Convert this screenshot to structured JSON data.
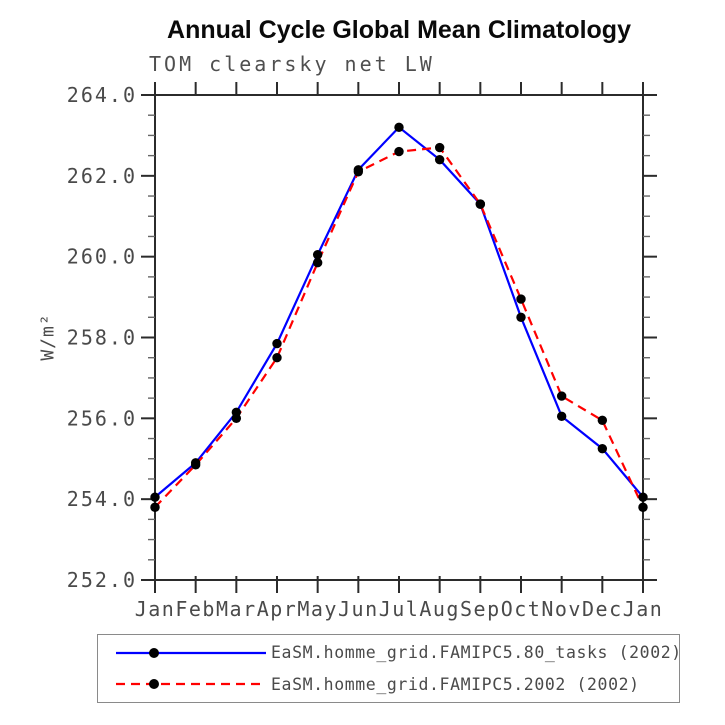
{
  "title": "Annual Cycle Global Mean Climatology",
  "subtitle": "TOM clearsky net LW",
  "ylabel": "W/m²",
  "legend": {
    "position": "bottom",
    "border_color": "#8a8a8a",
    "entries": [
      {
        "label": "EaSM.homme_grid.FAMIPC5.80_tasks (2002)",
        "line_color": "#0000ff",
        "line_style": "solid",
        "marker": "filled-circle",
        "marker_color": "#000000"
      },
      {
        "label": "EaSM.homme_grid.FAMIPC5.2002 (2002)",
        "line_color": "#ff0000",
        "line_style": "dashed",
        "marker": "filled-circle",
        "marker_color": "#000000"
      }
    ]
  },
  "chart_data": {
    "type": "line",
    "title": "Annual Cycle Global Mean Climatology",
    "subtitle": "TOM clearsky net LW",
    "xlabel": "",
    "ylabel": "W/m²",
    "categories": [
      "Jan",
      "Feb",
      "Mar",
      "Apr",
      "May",
      "Jun",
      "Jul",
      "Aug",
      "Sep",
      "Oct",
      "Nov",
      "Dec",
      "Jan"
    ],
    "series": [
      {
        "name": "EaSM.homme_grid.FAMIPC5.80_tasks (2002)",
        "color": "#0000ff",
        "style": "solid",
        "values": [
          254.05,
          254.9,
          256.15,
          257.85,
          260.05,
          262.15,
          263.2,
          262.4,
          261.3,
          258.5,
          256.05,
          255.25,
          254.05
        ]
      },
      {
        "name": "EaSM.homme_grid.FAMIPC5.2002 (2002)",
        "color": "#ff0000",
        "style": "dashed",
        "values": [
          253.8,
          254.85,
          256.0,
          257.5,
          259.85,
          262.1,
          262.6,
          262.7,
          261.3,
          258.95,
          256.55,
          255.95,
          253.8
        ]
      }
    ],
    "marker": {
      "shape": "circle",
      "color": "#000000",
      "radius_px": 4.7
    },
    "ylim": [
      252.0,
      264.0
    ],
    "ytick_labels": [
      "252.0",
      "254.0",
      "256.0",
      "258.0",
      "260.0",
      "262.0",
      "264.0"
    ],
    "ytick_major_step": 2.0,
    "ytick_minor_step": 0.5,
    "grid": "off",
    "axis_color": "#2b2b2b",
    "tick_label_color": "#4a4a4a",
    "legend_position": "bottom"
  }
}
